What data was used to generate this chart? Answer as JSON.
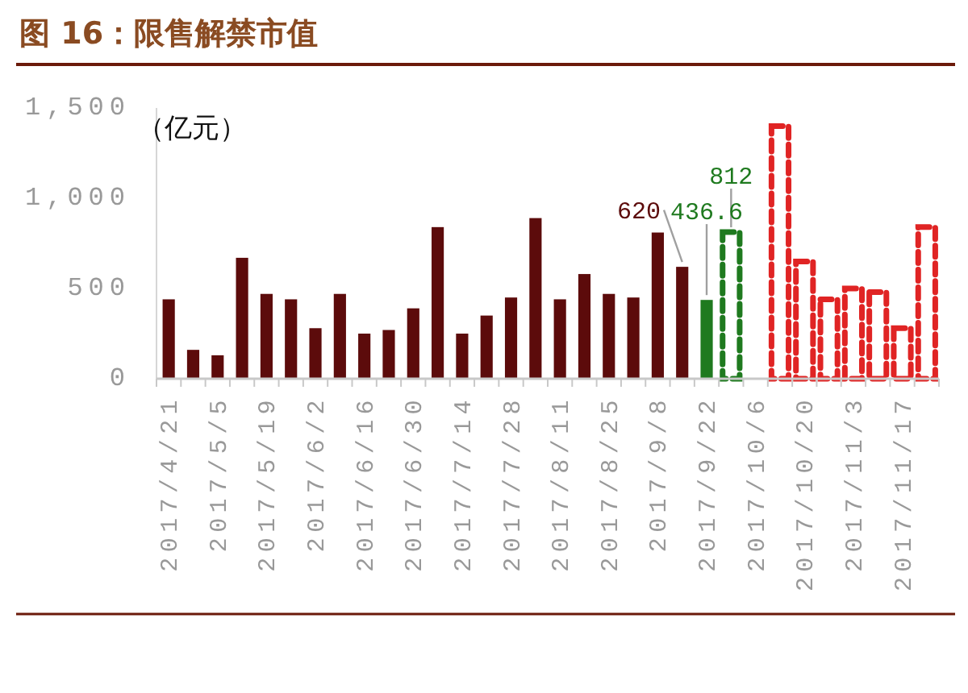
{
  "chart_data": {
    "type": "bar",
    "title": "图 16：限售解禁市值",
    "ylabel": "（亿元）",
    "categories": [
      "2017/4/21",
      null,
      "2017/5/5",
      null,
      "2017/5/19",
      null,
      "2017/6/2",
      null,
      "2017/6/16",
      null,
      "2017/6/30",
      null,
      "2017/7/14",
      null,
      "2017/7/28",
      null,
      "2017/8/11",
      null,
      "2017/8/25",
      null,
      "2017/9/8",
      null,
      "2017/9/22",
      null,
      "2017/10/6",
      null,
      "2017/10/20",
      null,
      "2017/11/3",
      null,
      "2017/11/17",
      null
    ],
    "series": [
      {
        "color": "#5c0b0b",
        "line_style": "solid",
        "values": [
          440,
          160,
          130,
          670,
          470,
          440,
          280,
          470,
          250,
          270,
          390,
          840,
          250,
          350,
          450,
          890,
          440,
          580,
          470,
          450,
          810,
          620,
          null,
          null,
          null,
          null,
          null,
          null,
          null,
          null,
          null,
          null
        ],
        "value_labels": [
          null,
          null,
          null,
          null,
          null,
          null,
          null,
          null,
          null,
          null,
          null,
          null,
          null,
          null,
          null,
          null,
          null,
          null,
          null,
          null,
          null,
          "620",
          null,
          null,
          null,
          null,
          null,
          null,
          null,
          null,
          null,
          null
        ]
      },
      {
        "color": "#1f7a1f",
        "line_style": "solid",
        "values": [
          null,
          null,
          null,
          null,
          null,
          null,
          null,
          null,
          null,
          null,
          null,
          null,
          null,
          null,
          null,
          null,
          null,
          null,
          null,
          null,
          null,
          null,
          436.6,
          null,
          null,
          null,
          null,
          null,
          null,
          null,
          null,
          null
        ],
        "value_labels": [
          null,
          null,
          null,
          null,
          null,
          null,
          null,
          null,
          null,
          null,
          null,
          null,
          null,
          null,
          null,
          null,
          null,
          null,
          null,
          null,
          null,
          null,
          "436.6",
          null,
          null,
          null,
          null,
          null,
          null,
          null,
          null,
          null
        ]
      },
      {
        "color": "#1f7a1f",
        "line_style": "dashed",
        "values": [
          null,
          null,
          null,
          null,
          null,
          null,
          null,
          null,
          null,
          null,
          null,
          null,
          null,
          null,
          null,
          null,
          null,
          null,
          null,
          null,
          null,
          null,
          null,
          812,
          null,
          null,
          null,
          null,
          null,
          null,
          null,
          null
        ],
        "value_labels": [
          null,
          null,
          null,
          null,
          null,
          null,
          null,
          null,
          null,
          null,
          null,
          null,
          null,
          null,
          null,
          null,
          null,
          null,
          null,
          null,
          null,
          null,
          null,
          "812",
          null,
          null,
          null,
          null,
          null,
          null,
          null,
          null
        ]
      },
      {
        "color": "#e02424",
        "line_style": "dashed",
        "values": [
          null,
          null,
          null,
          null,
          null,
          null,
          null,
          null,
          null,
          null,
          null,
          null,
          null,
          null,
          null,
          null,
          null,
          null,
          null,
          null,
          null,
          null,
          null,
          null,
          null,
          1400,
          650,
          440,
          500,
          480,
          280,
          840
        ]
      }
    ],
    "ylim": [
      0,
      1500
    ],
    "yticks": [
      0,
      500,
      {
        "value": 1000,
        "label": "1,000"
      },
      {
        "value": 1500,
        "label": "1,500"
      }
    ]
  }
}
